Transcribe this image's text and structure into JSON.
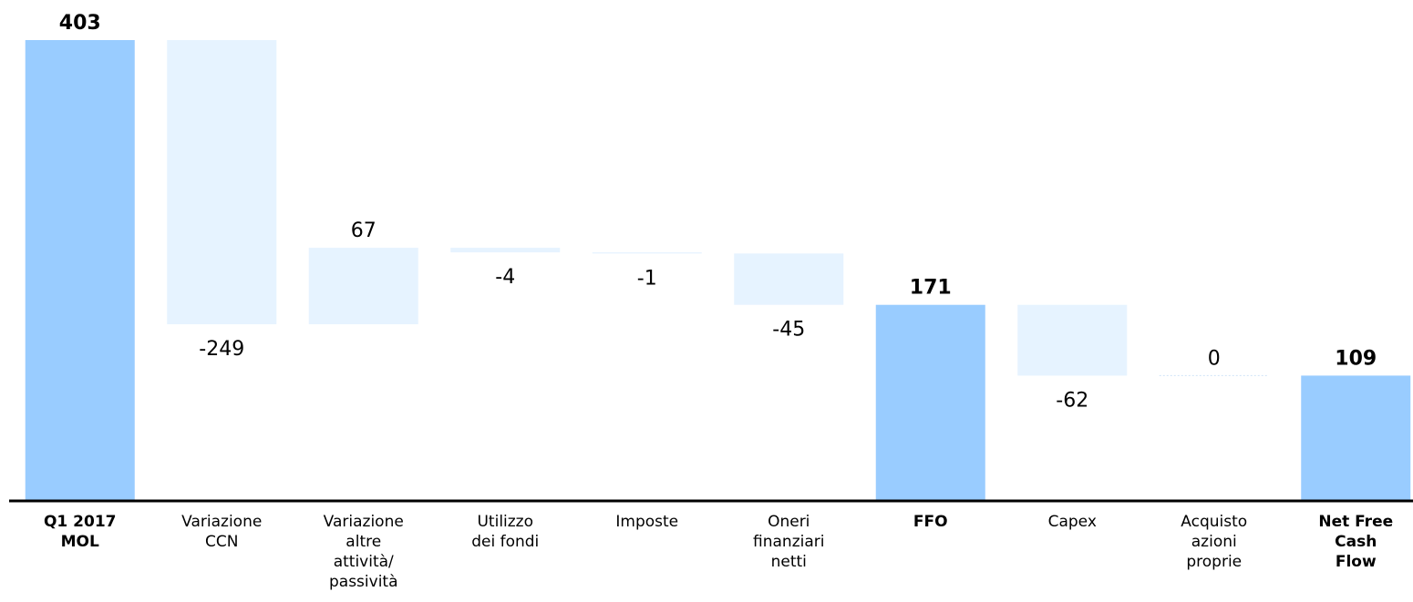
{
  "chart_data": {
    "type": "waterfall",
    "categories": [
      "Q1 2017\nMOL",
      "Variazione\nCCN",
      "Variazione\naltre\nattività/\npassività",
      "Utilizzo\ndei fondi",
      "Imposte",
      "Oneri\nfinanziari\nnetti",
      "FFO",
      "Capex",
      "Acquisto\nazioni\nproprie",
      "Net Free\nCash\nFlow"
    ],
    "values": [
      403,
      -249,
      67,
      -4,
      -1,
      -45,
      171,
      -62,
      0,
      109
    ],
    "totals": [
      true,
      false,
      false,
      false,
      false,
      false,
      true,
      false,
      false,
      true
    ],
    "total_color": "#99ccff",
    "change_color": "#e6f3ff"
  }
}
